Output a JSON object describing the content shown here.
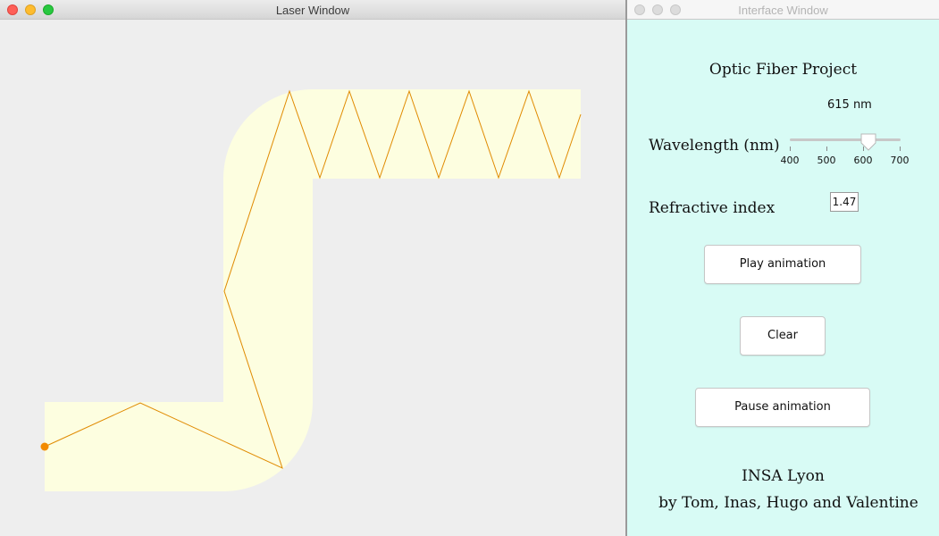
{
  "laser_window": {
    "title": "Laser Window",
    "fiber_color": "#fdfee0",
    "ray_color": "#e08a00",
    "source_color": "#f28a00"
  },
  "interface_window": {
    "title": "Interface Window",
    "project_title": "Optic Fiber Project",
    "wavelength": {
      "label": "Wavelength (nm)",
      "value_text": "615 nm",
      "value": 615,
      "min": 400,
      "max": 700,
      "ticks": [
        "400",
        "500",
        "600",
        "700"
      ]
    },
    "refractive_index": {
      "label": "Refractive index",
      "value": "1.47"
    },
    "buttons": {
      "play": "Play animation",
      "clear": "Clear",
      "pause": "Pause animation"
    },
    "footer": {
      "institution": "INSA Lyon",
      "credits": "by Tom, Inas, Hugo and Valentine"
    },
    "background_color": "#d8fbf5"
  }
}
